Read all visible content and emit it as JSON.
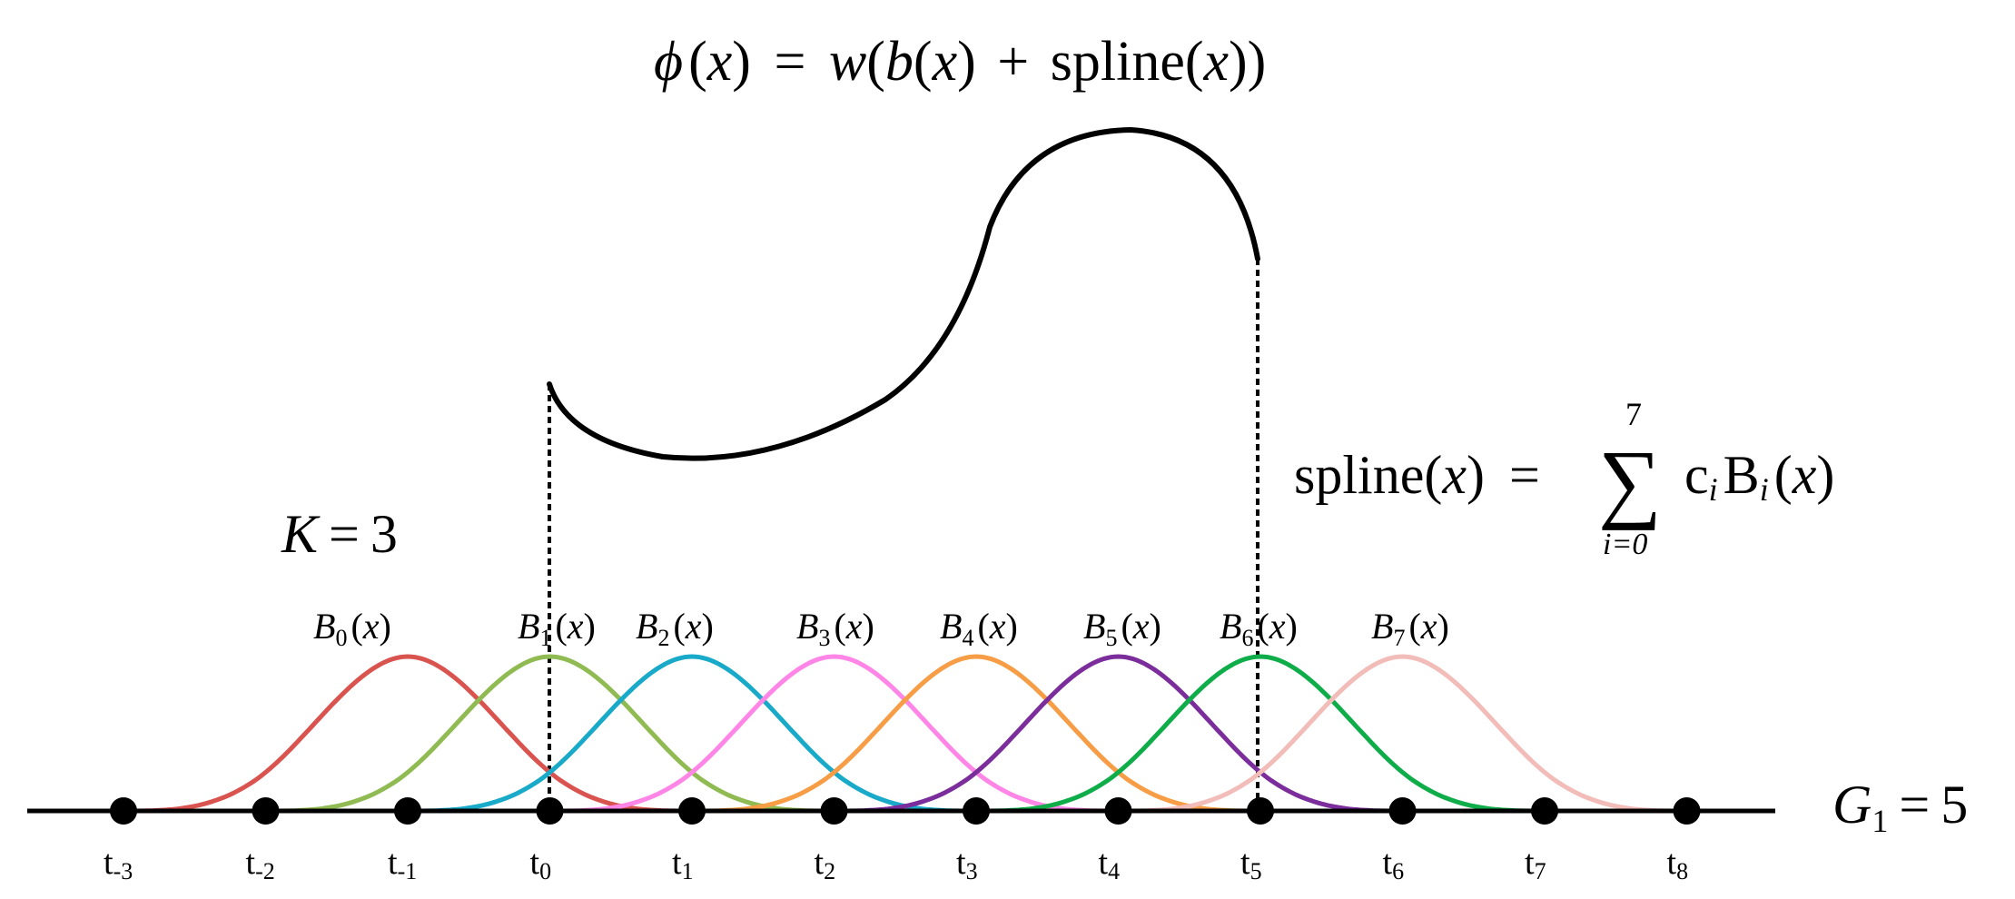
{
  "formulas": {
    "phi": {
      "phi": "ϕ",
      "x1": "x",
      "eq": "=",
      "w": "w",
      "b": "b",
      "x2": "x",
      "plus": "+",
      "spline": "spline",
      "x3": "x"
    },
    "spline_sum": {
      "lhs": "spline(",
      "x": "x",
      "rhs": ")",
      "eq": "=",
      "sum": "∑",
      "upper": "7",
      "lower": "i=0",
      "c": "c",
      "ci": "i",
      "B": "B",
      "Bi": "i",
      "arg_open": "(",
      "arg_x": "x",
      "arg_close": ")"
    },
    "k": {
      "K": "K",
      "eq": "=",
      "val": "3"
    },
    "grid": {
      "G": "G",
      "sub": "1",
      "eq": "=",
      "val": "5"
    }
  },
  "basis_functions": [
    {
      "name": "B",
      "index": "0",
      "arg": "x",
      "color": "#d9534f"
    },
    {
      "name": "B",
      "index": "1",
      "arg": "x",
      "color": "#8fbb52"
    },
    {
      "name": "B",
      "index": "2",
      "arg": "x",
      "color": "#19a9c9"
    },
    {
      "name": "B",
      "index": "3",
      "arg": "x",
      "color": "#ff85e6"
    },
    {
      "name": "B",
      "index": "4",
      "arg": "x",
      "color": "#f79d45"
    },
    {
      "name": "B",
      "index": "5",
      "arg": "x",
      "color": "#7b2d9c"
    },
    {
      "name": "B",
      "index": "6",
      "arg": "x",
      "color": "#0fad4a"
    },
    {
      "name": "B",
      "index": "7",
      "arg": "x",
      "color": "#f2bcb8"
    }
  ],
  "knots": [
    {
      "base": "t",
      "sub": "-3"
    },
    {
      "base": "t",
      "sub": "-2"
    },
    {
      "base": "t",
      "sub": "-1"
    },
    {
      "base": "t",
      "sub": "0"
    },
    {
      "base": "t",
      "sub": "1"
    },
    {
      "base": "t",
      "sub": "2"
    },
    {
      "base": "t",
      "sub": "3"
    },
    {
      "base": "t",
      "sub": "4"
    },
    {
      "base": "t",
      "sub": "5"
    },
    {
      "base": "t",
      "sub": "6"
    },
    {
      "base": "t",
      "sub": "7"
    },
    {
      "base": "t",
      "sub": "8"
    }
  ],
  "colors": {
    "axis": "#000000",
    "curve": "#000000"
  }
}
